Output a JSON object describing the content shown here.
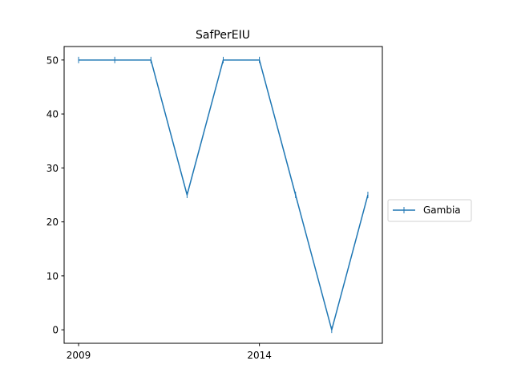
{
  "chart_data": {
    "type": "line",
    "title": "SafPerEIU",
    "xlabel": "",
    "ylabel": "",
    "x": [
      2009,
      2010,
      2011,
      2012,
      2013,
      2014,
      2015,
      2016,
      2017
    ],
    "series": [
      {
        "name": "Gambia",
        "values": [
          50,
          50,
          50,
          25,
          50,
          50,
          25,
          0,
          25
        ],
        "color": "#1f77b4",
        "marker": "vline"
      }
    ],
    "xlim": [
      2008.6,
      2017.4
    ],
    "ylim": [
      -2.5,
      52.5
    ],
    "x_ticks": [
      2009,
      2014
    ],
    "y_ticks": [
      0,
      10,
      20,
      30,
      40,
      50
    ],
    "grid": false,
    "legend": "outside-right"
  }
}
